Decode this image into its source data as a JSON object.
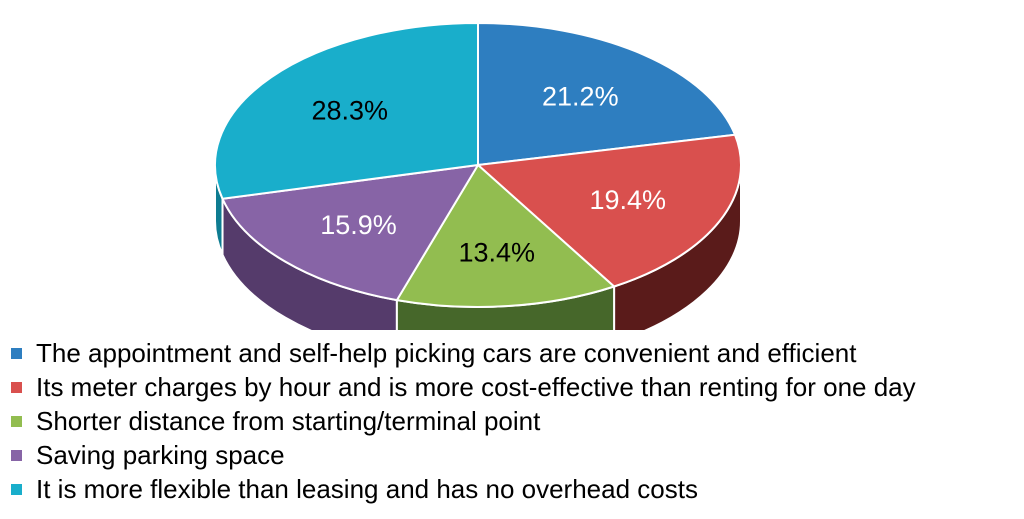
{
  "chart_data": {
    "type": "pie",
    "three_d": true,
    "start_angle_deg": -90,
    "direction": "clockwise",
    "legend_position": "bottom",
    "slices": [
      {
        "label": "The appointment and self-help picking cars are convenient and efficient",
        "value": 21.2,
        "display": "21.2%",
        "color": "#2E7EC0",
        "side_color": "#1B4C75",
        "text_color": "#ffffff"
      },
      {
        "label": "Its meter charges by hour and is more cost-effective than renting for one day",
        "value": 19.4,
        "display": "19.4%",
        "color": "#D9504E",
        "side_color": "#5A1B1A",
        "text_color": "#ffffff"
      },
      {
        "label": "Shorter distance from starting/terminal point",
        "value": 13.4,
        "display": "13.4%",
        "color": "#92BD50",
        "side_color": "#46672A",
        "text_color": "#000000"
      },
      {
        "label": "Saving parking space",
        "value": 15.9,
        "display": "15.9%",
        "color": "#8764A6",
        "side_color": "#553B6B",
        "text_color": "#ffffff"
      },
      {
        "label": "It is more flexible than leasing and has no overhead costs",
        "value": 28.3,
        "display": "28.3%",
        "color": "#19AECB",
        "side_color": "#0E7C91",
        "text_color": "#000000"
      }
    ]
  }
}
